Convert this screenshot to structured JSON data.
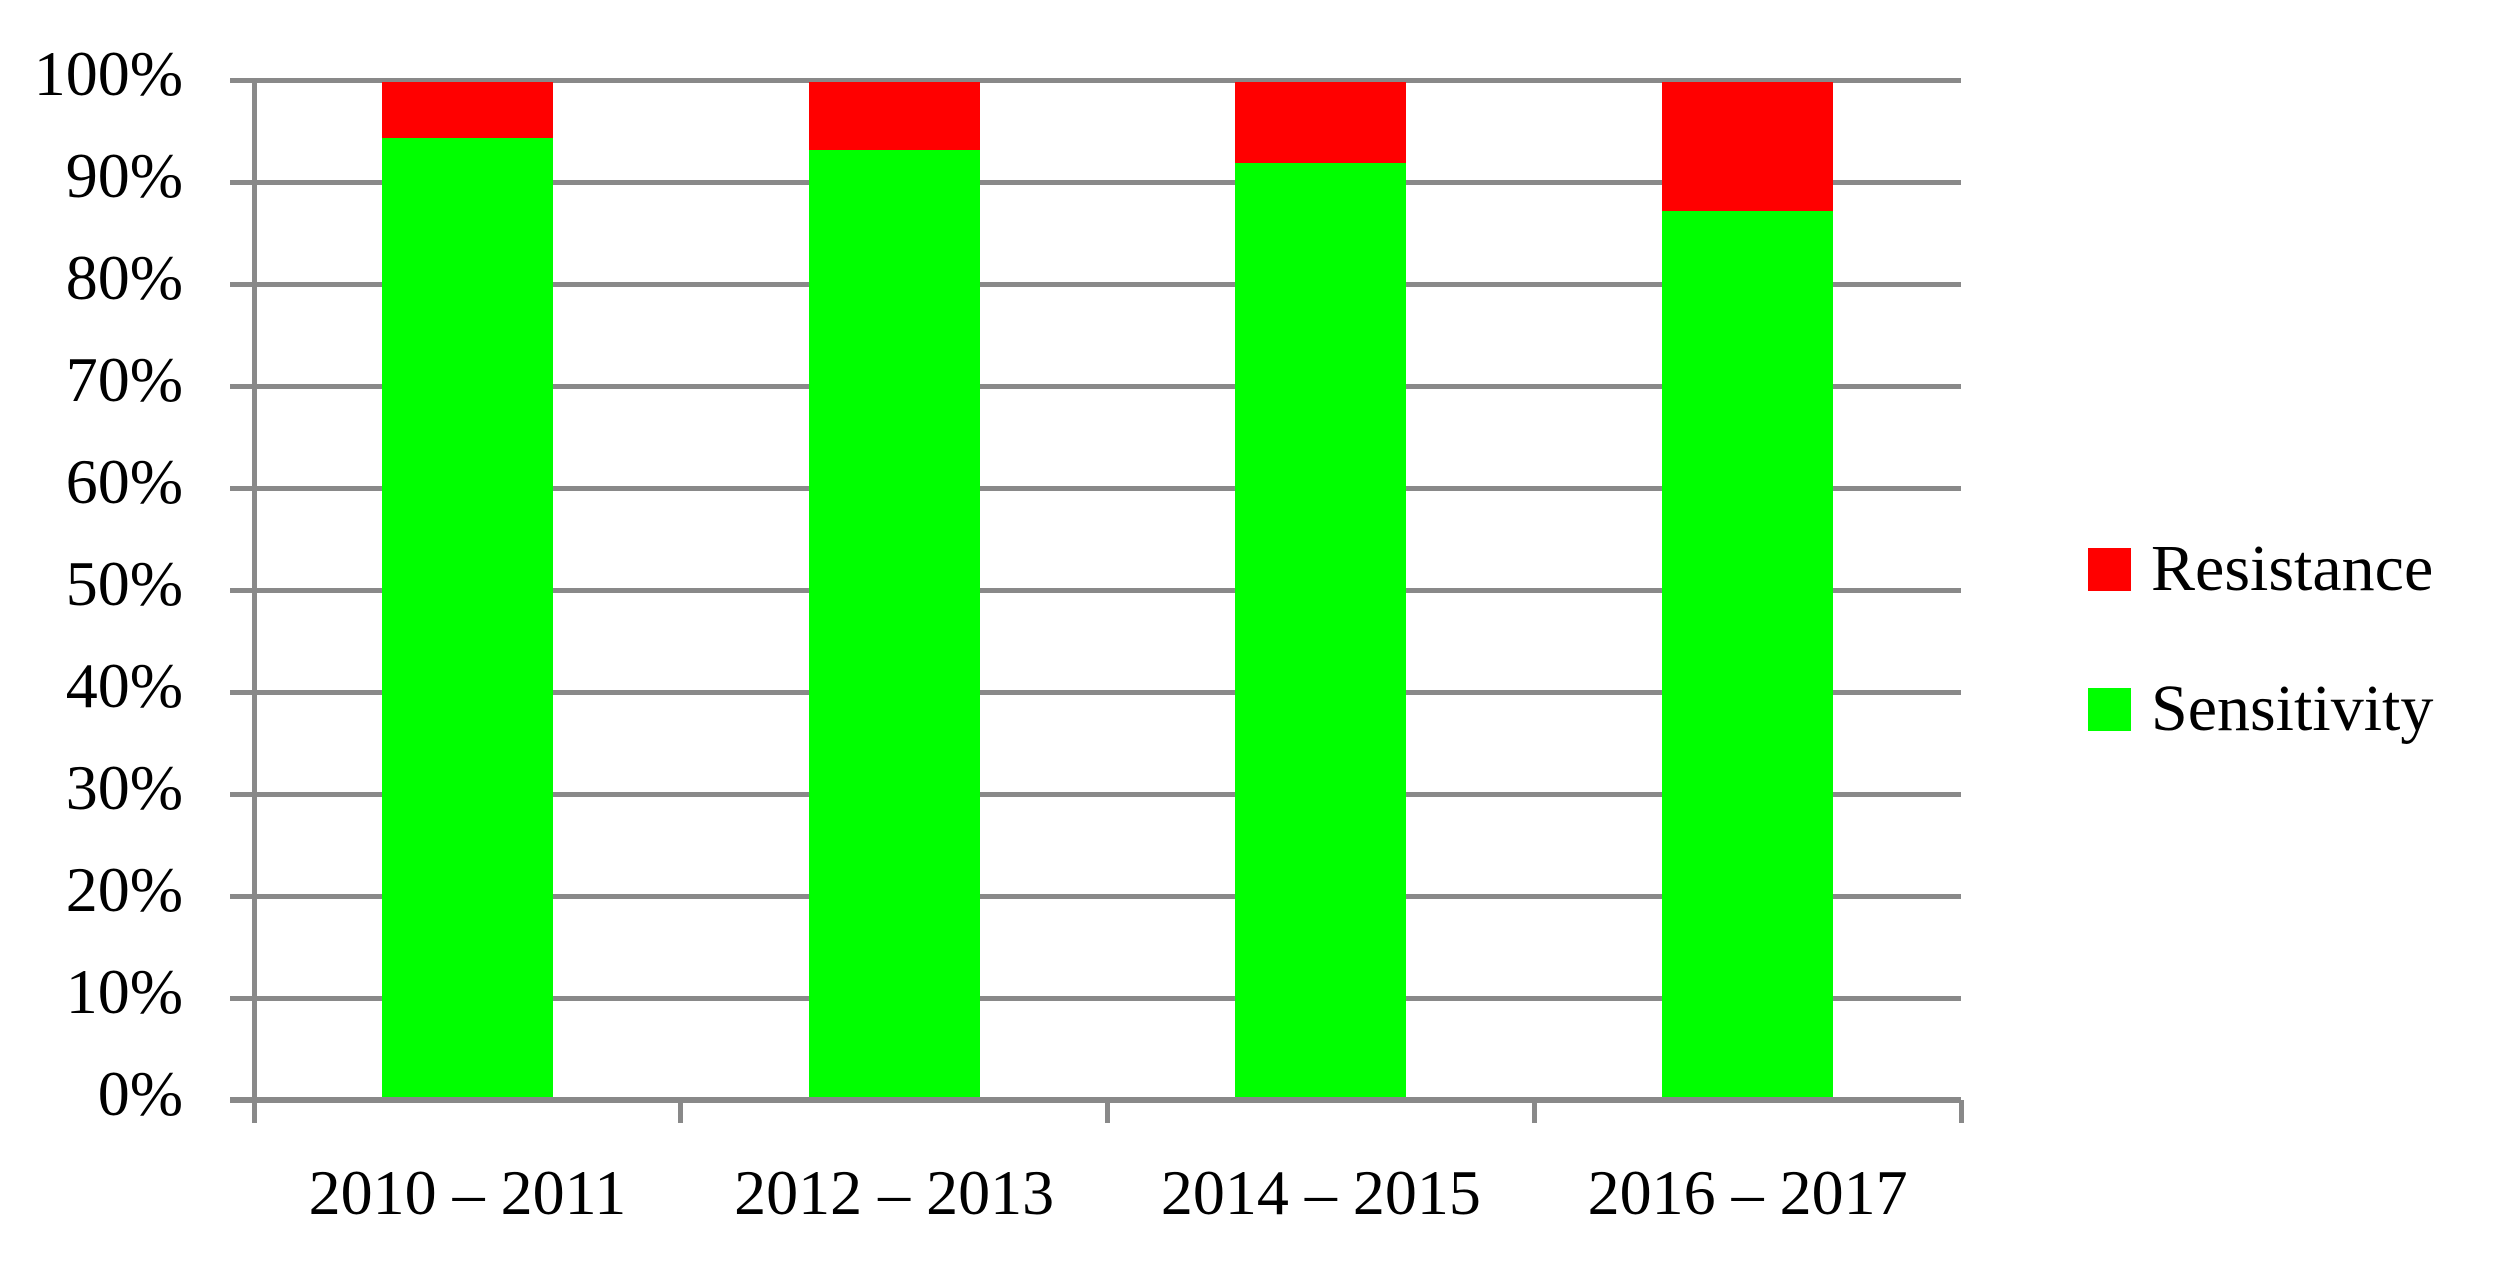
{
  "chart_data": {
    "type": "bar",
    "stacked": true,
    "unit": "%",
    "categories": [
      "2010 – 2011",
      "2012 – 2013",
      "2014 – 2015",
      "2016 – 2017"
    ],
    "series": [
      {
        "name": "Resistance",
        "color": "#FF0000",
        "values": [
          5.7,
          6.9,
          8.1,
          12.8
        ]
      },
      {
        "name": "Sensitivity",
        "color": "#00FF00",
        "values": [
          94.3,
          93.1,
          91.9,
          87.2
        ]
      }
    ],
    "y_axis": {
      "min": 0,
      "max": 100,
      "tick_step": 10,
      "tick_labels": [
        "100%",
        "90%",
        "80%",
        "70%",
        "60%",
        "50%",
        "40%",
        "30%",
        "20%",
        "10%",
        "0%"
      ],
      "grid": true
    },
    "x_axis": {
      "tick_marks": "between-categories"
    },
    "legend": {
      "position": "right",
      "items": [
        "Resistance",
        "Sensitivity"
      ]
    },
    "colors": {
      "grid": "#898989",
      "axis": "#898989",
      "background": "#FFFFFF",
      "text": "#000000"
    },
    "title": "",
    "xlabel": "",
    "ylabel": ""
  }
}
